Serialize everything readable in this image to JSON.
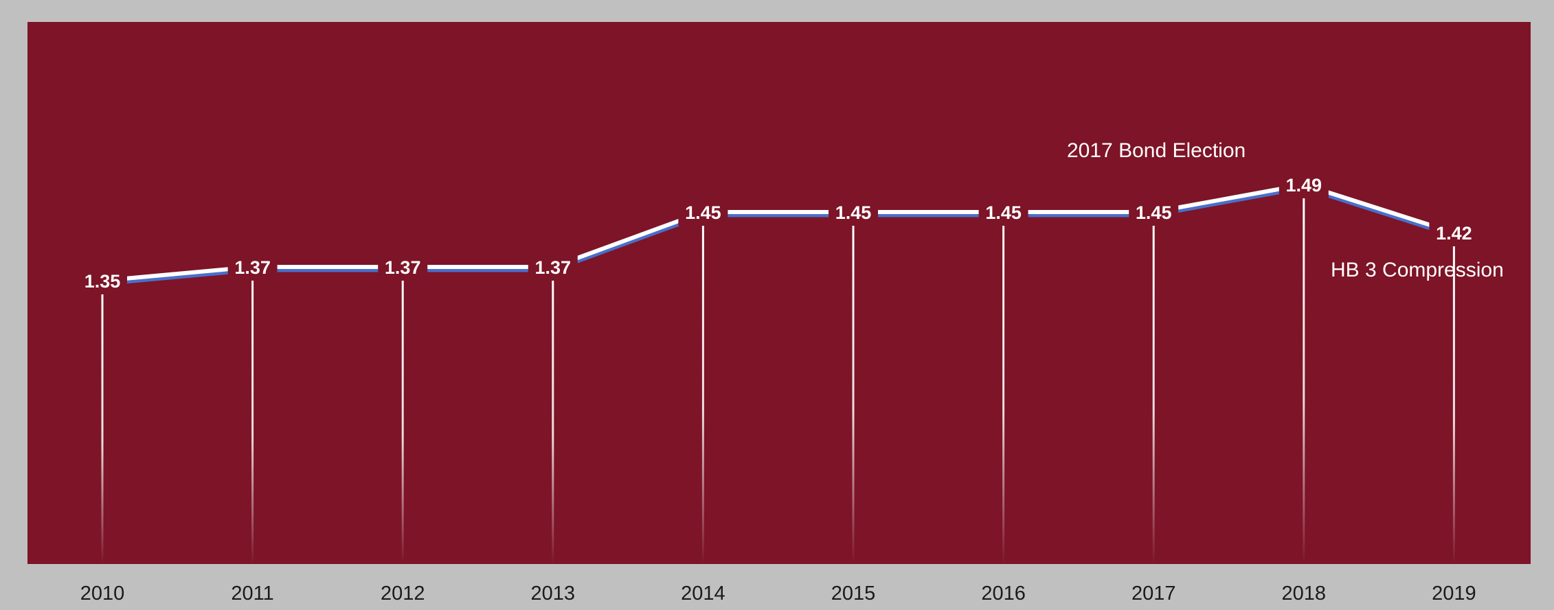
{
  "colors": {
    "background": "#c0c0c0",
    "plot_area": "#7d1427",
    "line_main": "#ffffff",
    "line_shadow": "#4a6fc9",
    "drop_line": "#ffffff",
    "tick_text": "#1a1a1a"
  },
  "chart_data": {
    "type": "line",
    "categories": [
      "2010",
      "2011",
      "2012",
      "2013",
      "2014",
      "2015",
      "2016",
      "2017",
      "2018",
      "2019"
    ],
    "values": [
      1.35,
      1.37,
      1.37,
      1.37,
      1.45,
      1.45,
      1.45,
      1.45,
      1.49,
      1.42
    ],
    "data_labels": [
      "1.35",
      "1.37",
      "1.37",
      "1.37",
      "1.45",
      "1.45",
      "1.45",
      "1.45",
      "1.49",
      "1.42"
    ],
    "ylim": [
      1.0,
      1.65
    ],
    "grid": false,
    "drop_lines": true,
    "title": "",
    "xlabel": "",
    "ylabel": "",
    "annotations": [
      {
        "text": "2017 Bond Election",
        "near_category": "2017",
        "position": "above"
      },
      {
        "text": "HB 3 Compression",
        "near_category": "2019",
        "position": "below"
      }
    ]
  }
}
